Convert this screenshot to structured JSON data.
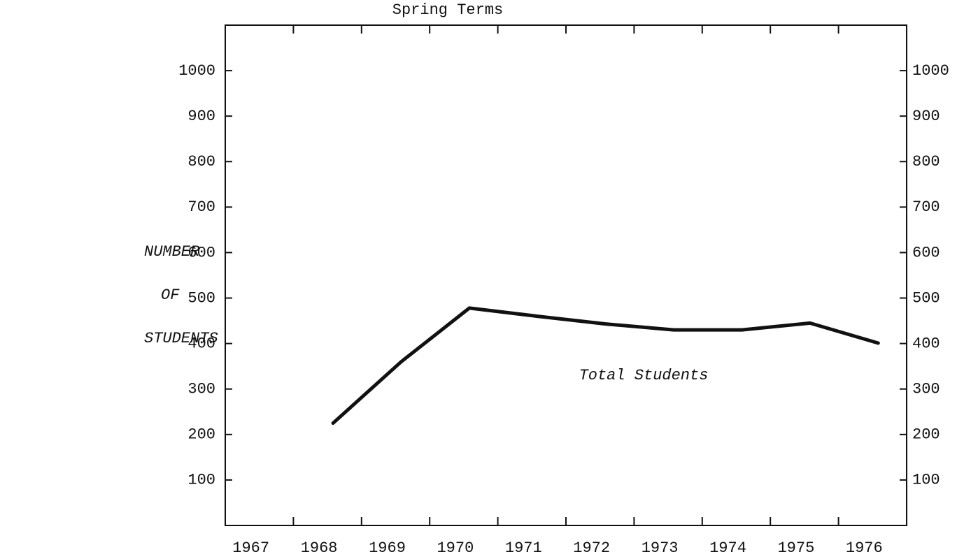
{
  "chart_data": {
    "type": "line",
    "title": "Spring Terms",
    "ylabel_lines": [
      "NUMBER",
      "OF",
      "STUDENTS"
    ],
    "annotation": "Total Students",
    "categories": [
      "1967",
      "1968",
      "1969",
      "1970",
      "1971",
      "1972",
      "1973",
      "1974",
      "1975",
      "1976"
    ],
    "series": [
      {
        "name": "Total Students",
        "color": "#111111",
        "values": [
          null,
          225,
          360,
          478,
          460,
          443,
          430,
          430,
          445,
          401
        ]
      }
    ],
    "ylim": [
      0,
      1100
    ],
    "yticks": [
      100,
      200,
      300,
      400,
      500,
      600,
      700,
      800,
      900,
      1000
    ],
    "grid": false
  }
}
